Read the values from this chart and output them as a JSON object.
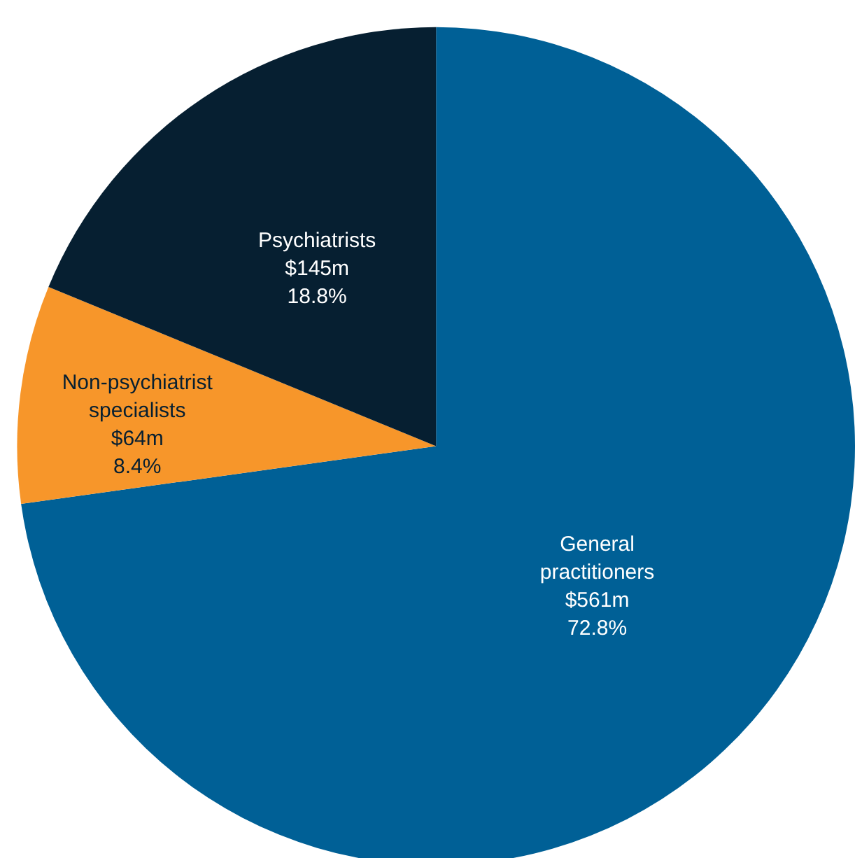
{
  "chart_data": {
    "type": "pie",
    "categories": [
      "General practitioners",
      "Non-psychiatrist specialists",
      "Psychiatrists"
    ],
    "values": [
      72.8,
      8.4,
      18.8
    ],
    "value_labels": [
      "72.8%",
      "8.4%",
      "18.8%"
    ],
    "annotations": [
      "$561m",
      "$64m",
      "$145m"
    ],
    "colors": [
      "#006096",
      "#f7962a",
      "#061f31"
    ]
  }
}
